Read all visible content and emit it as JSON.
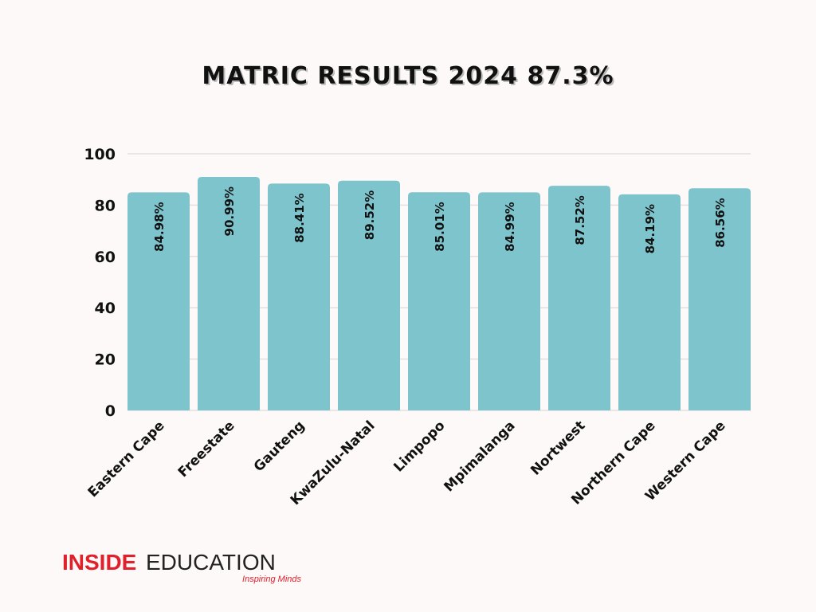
{
  "chart_data": {
    "type": "bar",
    "title": "MATRIC RESULTS 2024 87.3%",
    "categories": [
      "Eastern Cape",
      "Freestate",
      "Gauteng",
      "KwaZulu-Natal",
      "Limpopo",
      "Mpimalanga",
      "Nortwest",
      "Northern Cape",
      "Western Cape"
    ],
    "values": [
      84.98,
      90.99,
      88.41,
      89.52,
      85.01,
      84.99,
      87.52,
      84.19,
      86.56
    ],
    "data_labels": [
      "84.98%",
      "90.99%",
      "88.41%",
      "89.52%",
      "85.01%",
      "84.99%",
      "87.52%",
      "84.19%",
      "86.56%"
    ],
    "ylim": [
      0,
      100
    ],
    "yticks": [
      0,
      20,
      40,
      60,
      80,
      100
    ],
    "grid": true,
    "bar_color": "#7dc4cc",
    "xlabel": "",
    "ylabel": ""
  },
  "logo": {
    "brand_red": "INSIDE",
    "brand_dark": "EDUCATION",
    "tagline": "Inspiring Minds",
    "color": "#e0202b"
  }
}
